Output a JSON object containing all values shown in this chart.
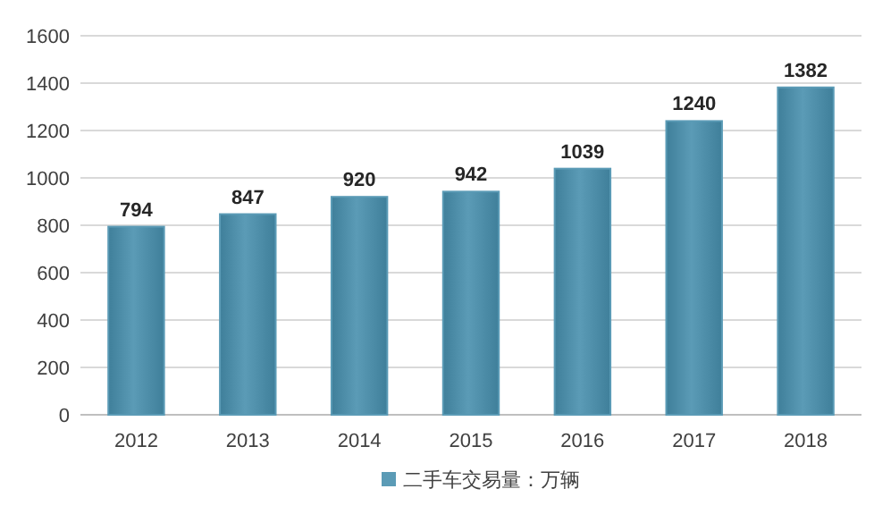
{
  "chart_data": {
    "type": "bar",
    "categories": [
      "2012",
      "2013",
      "2014",
      "2015",
      "2016",
      "2017",
      "2018"
    ],
    "series": [
      {
        "name": "二手车交易量：万辆",
        "color": "#5b9bb6",
        "values": [
          794,
          847,
          920,
          942,
          1039,
          1240,
          1382
        ]
      }
    ],
    "ylim": [
      0,
      1600
    ],
    "yticks": [
      0,
      200,
      400,
      600,
      800,
      1000,
      1200,
      1400,
      1600
    ],
    "grid": "y",
    "legend": "bottom",
    "data_labels": true
  }
}
